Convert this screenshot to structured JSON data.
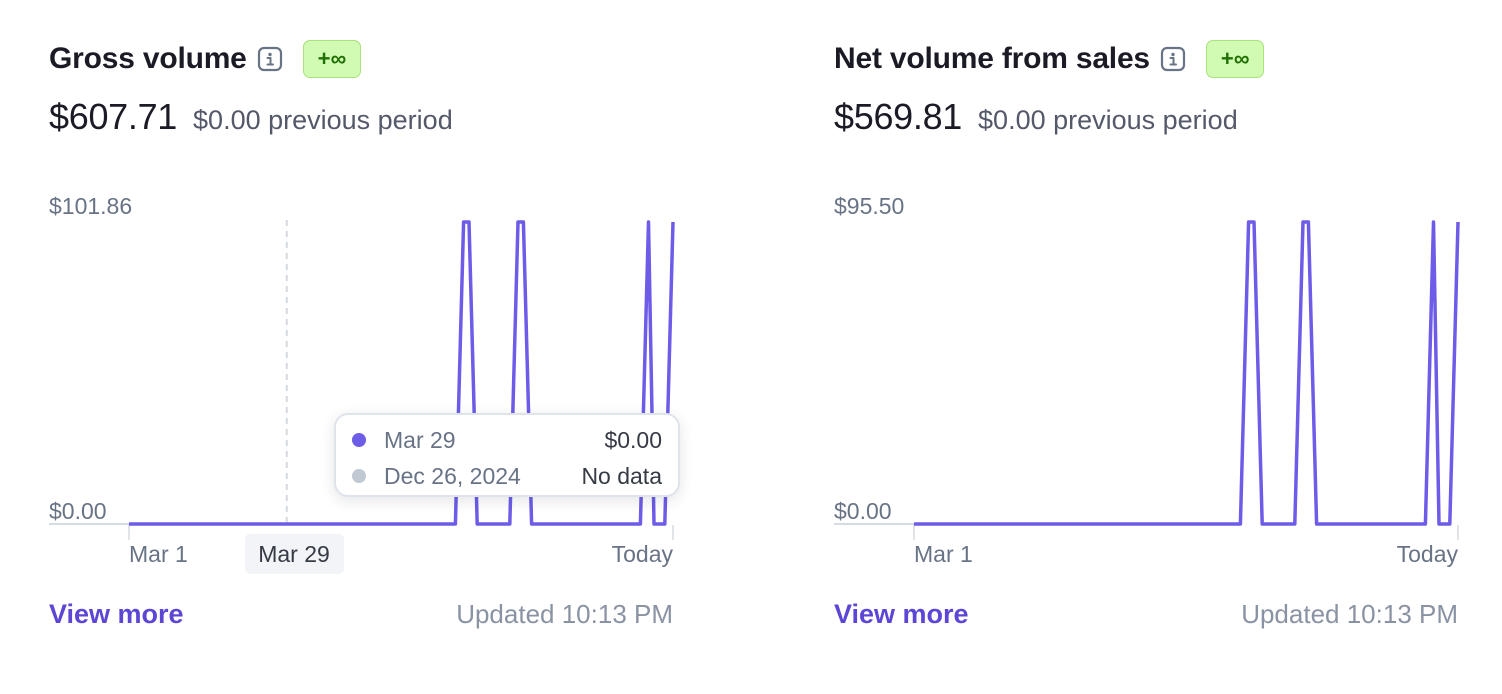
{
  "colors": {
    "series": "#6c5ce7",
    "previous_series": "#c0c8d2",
    "badge_bg": "#d1fab3",
    "badge_text": "#217005",
    "link": "#5b46d6"
  },
  "gross": {
    "title": "Gross volume",
    "info_icon": "info-icon",
    "badge": "+∞",
    "amount": "$607.71",
    "previous": "$0.00 previous period",
    "y_max_label": "$101.86",
    "y_min_label": "$0.00",
    "x_start_label": "Mar 1",
    "x_hover_label": "Mar 29",
    "x_end_label": "Today",
    "tooltip": {
      "current_date": "Mar 29",
      "current_value": "$0.00",
      "previous_date": "Dec 26, 2024",
      "previous_value": "No data"
    },
    "view_more": "View more",
    "updated": "Updated 10:13 PM"
  },
  "net": {
    "title": "Net volume from sales",
    "info_icon": "info-icon",
    "badge": "+∞",
    "amount": "$569.81",
    "previous": "$0.00 previous period",
    "y_max_label": "$95.50",
    "y_min_label": "$0.00",
    "x_start_label": "Mar 1",
    "x_end_label": "Today",
    "view_more": "View more",
    "updated": "Updated 10:13 PM"
  },
  "chart_data": [
    {
      "type": "line",
      "x_domain": [
        "Mar 1",
        "Today"
      ],
      "ylim": [
        0,
        101.86
      ],
      "hover_x": 0.29,
      "x": [
        0,
        0.6,
        0.615,
        0.625,
        0.64,
        0.7,
        0.715,
        0.725,
        0.74,
        0.94,
        0.955,
        0.965,
        0.985,
        1.0
      ],
      "values": [
        0,
        0,
        101.86,
        101.86,
        0,
        0,
        101.86,
        101.86,
        0,
        0,
        101.86,
        0,
        0,
        101.86
      ]
    },
    {
      "type": "line",
      "x_domain": [
        "Mar 1",
        "Today"
      ],
      "ylim": [
        0,
        95.5
      ],
      "x": [
        0,
        0.6,
        0.615,
        0.625,
        0.64,
        0.7,
        0.715,
        0.725,
        0.74,
        0.94,
        0.955,
        0.965,
        0.985,
        1.0
      ],
      "values": [
        0,
        0,
        95.5,
        95.5,
        0,
        0,
        95.5,
        95.5,
        0,
        0,
        95.5,
        0,
        0,
        95.5
      ]
    }
  ]
}
